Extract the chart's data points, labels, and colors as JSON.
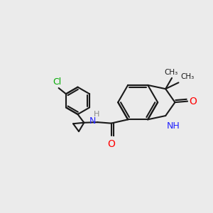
{
  "bg_color": "#ebebeb",
  "bond_color": "#1a1a1a",
  "N_color": "#2020ff",
  "O_color": "#ff0000",
  "Cl_color": "#00aa00",
  "line_width": 1.5,
  "font_size": 9,
  "fig_size": [
    3.0,
    3.0
  ],
  "dpi": 100,
  "xlim": [
    0,
    10
  ],
  "ylim": [
    0,
    10
  ]
}
